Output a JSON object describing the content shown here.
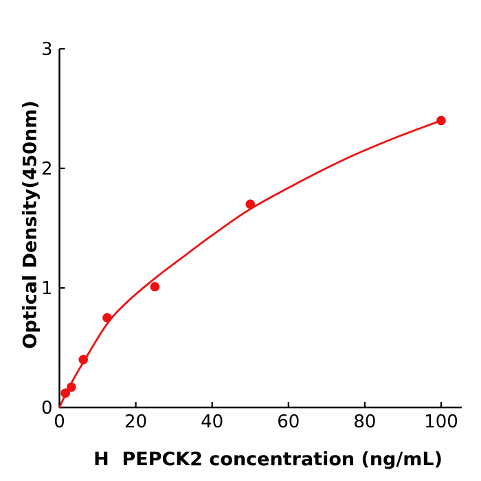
{
  "chart_data": {
    "type": "scatter",
    "title": "",
    "xlabel": "H  PEPCK2 concentration (ng/mL)",
    "ylabel": "Optical Density(450nm)",
    "x": [
      1.5625,
      3.125,
      6.25,
      12.5,
      25,
      50,
      100
    ],
    "y": [
      0.12,
      0.17,
      0.4,
      0.75,
      1.01,
      1.7,
      2.4
    ],
    "curve": {
      "x": [
        0,
        0.8,
        1.5625,
        3.125,
        6.25,
        12.5,
        18,
        25,
        32,
        40,
        50,
        62.5,
        75,
        87.5,
        100
      ],
      "y": [
        0,
        0.055,
        0.108,
        0.205,
        0.378,
        0.7,
        0.89,
        1.08,
        1.25,
        1.44,
        1.66,
        1.88,
        2.08,
        2.25,
        2.4
      ]
    },
    "x_ticks": [
      0,
      20,
      40,
      60,
      80,
      100
    ],
    "y_ticks": [
      0,
      1,
      2,
      3
    ],
    "xlim": [
      0,
      105.4
    ],
    "ylim": [
      0,
      3
    ],
    "grid": false,
    "legend": "none",
    "point_color": "#ee1111",
    "curve_color": "#ee1111",
    "axis_color": "#000000"
  }
}
